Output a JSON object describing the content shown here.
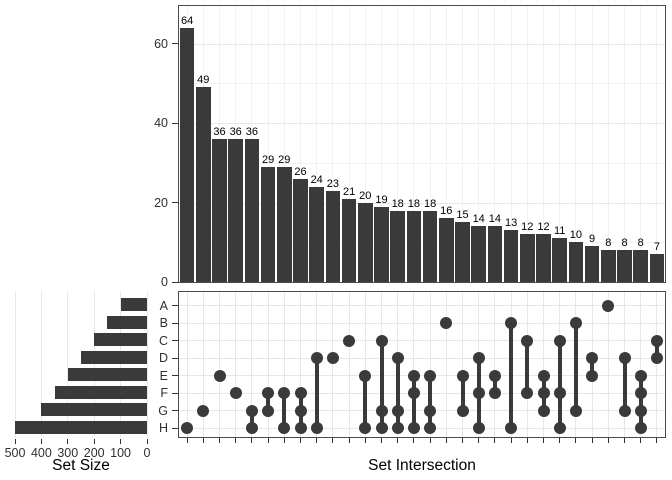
{
  "labels": {
    "set_size_axis": "Set Size",
    "set_intersection_axis": "Set Intersection"
  },
  "colors": {
    "bar": "#3a3a3a",
    "dot": "#3a3a3a",
    "panel_border": "#4a4a4a",
    "grid": "#e7e7e7",
    "grid_minor": "#f1f1f1",
    "tick": "#333333",
    "text": "#303030",
    "value_label": "#000000"
  },
  "chart_data": [
    {
      "id": "intersection-size",
      "type": "bar",
      "title": "",
      "xlabel": "Set Intersection",
      "ylabel": "",
      "ylim": [
        0,
        69.5
      ],
      "yticks": [
        0,
        20,
        40,
        60
      ],
      "yticks_minor": [
        10,
        30,
        50
      ],
      "grid": "on",
      "value_labels": true,
      "values": [
        64,
        49,
        36,
        36,
        36,
        29,
        29,
        26,
        24,
        23,
        21,
        20,
        19,
        18,
        18,
        18,
        16,
        15,
        14,
        14,
        13,
        12,
        12,
        11,
        10,
        9,
        8,
        8,
        8,
        7
      ],
      "memberships": [
        [
          "H"
        ],
        [
          "G"
        ],
        [
          "E"
        ],
        [
          "F"
        ],
        [
          "G",
          "H"
        ],
        [
          "F",
          "G"
        ],
        [
          "F",
          "H"
        ],
        [
          "F",
          "G",
          "H"
        ],
        [
          "D",
          "H"
        ],
        [
          "D"
        ],
        [
          "C"
        ],
        [
          "E",
          "H"
        ],
        [
          "C",
          "G",
          "H"
        ],
        [
          "D",
          "G",
          "H"
        ],
        [
          "E",
          "F",
          "H"
        ],
        [
          "E",
          "G",
          "H"
        ],
        [
          "B"
        ],
        [
          "E",
          "G"
        ],
        [
          "D",
          "F",
          "H"
        ],
        [
          "E",
          "F"
        ],
        [
          "B",
          "H"
        ],
        [
          "C",
          "F"
        ],
        [
          "E",
          "F",
          "G"
        ],
        [
          "C",
          "F",
          "H"
        ],
        [
          "B",
          "G"
        ],
        [
          "D",
          "E"
        ],
        [
          "A"
        ],
        [
          "D",
          "G"
        ],
        [
          "E",
          "F",
          "G",
          "H"
        ],
        [
          "C",
          "D"
        ]
      ]
    },
    {
      "id": "set-size",
      "type": "bar",
      "orientation": "horizontal",
      "title": "",
      "xlabel": "Set Size",
      "categories": [
        "A",
        "B",
        "C",
        "D",
        "E",
        "F",
        "G",
        "H"
      ],
      "values": [
        100,
        150,
        200,
        250,
        300,
        350,
        400,
        500
      ],
      "xticks": [
        500,
        400,
        300,
        200,
        100,
        0
      ],
      "xlim": [
        500,
        0
      ],
      "grid": "on"
    },
    {
      "id": "membership-matrix",
      "type": "scatter",
      "rows": [
        "A",
        "B",
        "C",
        "D",
        "E",
        "F",
        "G",
        "H"
      ]
    }
  ]
}
